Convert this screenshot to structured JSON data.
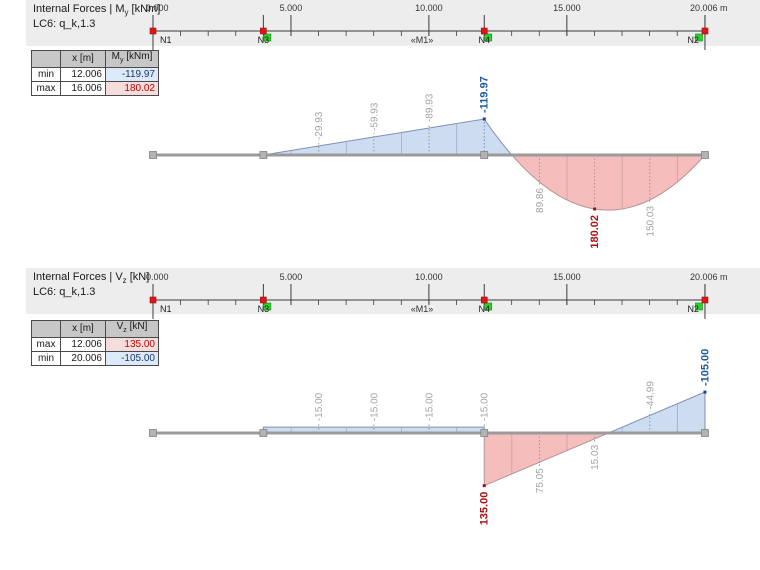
{
  "panel_my": {
    "title": {
      "prefix": "Internal Forces | M",
      "sub": "y",
      "suffix": " [kNm]"
    },
    "load_case": "LC6: q_k,1.3",
    "table": {
      "col_x": "x [m]",
      "col_val": {
        "prefix": "M",
        "sub": "y",
        "suffix": " [kNm]"
      },
      "rows": [
        {
          "label": "min",
          "x": "12.006",
          "value": "-119.97",
          "tone": "blue"
        },
        {
          "label": "max",
          "x": "16.006",
          "value": "180.02",
          "tone": "red"
        }
      ]
    }
  },
  "panel_vz": {
    "title": {
      "prefix": "Internal Forces | V",
      "sub": "z",
      "suffix": " [kN]"
    },
    "load_case": "LC6: q_k,1.3",
    "table": {
      "col_x": "x [m]",
      "col_val": {
        "prefix": "V",
        "sub": "z",
        "suffix": " [kN]"
      },
      "rows": [
        {
          "label": "max",
          "x": "12.006",
          "value": "135.00",
          "tone": "red"
        },
        {
          "label": "min",
          "x": "20.006",
          "value": "-105.00",
          "tone": "blue"
        }
      ]
    }
  },
  "chart_data": [
    {
      "type": "area",
      "title": "Internal Forces | My [kNm]",
      "load_case": "LC6: q_k,1.3",
      "x_unit": "m",
      "value_unit": "kNm",
      "x_range": [
        0,
        20.006
      ],
      "x_ticks": [
        {
          "x": 0,
          "label": "0.000"
        },
        {
          "x": 5,
          "label": "5.000"
        },
        {
          "x": 10,
          "label": "10.000"
        },
        {
          "x": 15,
          "label": "15.000"
        },
        {
          "x": 20.006,
          "label": "20.006 m"
        }
      ],
      "nodes": [
        {
          "name": "N1",
          "x": 0,
          "support": "none"
        },
        {
          "name": "N3",
          "x": 4,
          "support": "right"
        },
        {
          "name": "N4",
          "x": 12.006,
          "support": "right"
        },
        {
          "name": "N2",
          "x": 20.006,
          "support": "left"
        }
      ],
      "member_label": {
        "text": "«M1»",
        "x": 9.75
      },
      "segments": [
        {
          "kind": "zero",
          "x1": 0,
          "x2": 4
        },
        {
          "kind": "linear",
          "pts": [
            [
              4,
              0
            ],
            [
              12.006,
              -119.97
            ]
          ]
        },
        {
          "kind": "parabola",
          "pts": [
            [
              12.006,
              -119.97
            ],
            [
              16.006,
              180.02
            ],
            [
              20.006,
              0
            ]
          ]
        }
      ],
      "point_labels": [
        {
          "x": 6.006,
          "text": "-29.93",
          "value": -29.93
        },
        {
          "x": 8.006,
          "text": "-59.93",
          "value": -59.93
        },
        {
          "x": 10.006,
          "text": "-89.93",
          "value": -89.93
        },
        {
          "x": 12.006,
          "text": "-119.97",
          "value": -119.97,
          "emph": "min"
        },
        {
          "x": 14.006,
          "text": "89.86",
          "value": 89.86
        },
        {
          "x": 16.006,
          "text": "180.02",
          "value": 180.02,
          "emph": "max"
        },
        {
          "x": 18.006,
          "text": "150.03",
          "value": 150.03
        }
      ],
      "extremes": {
        "min": {
          "x": 12.006,
          "value": -119.97
        },
        "max": {
          "x": 16.006,
          "value": 180.02
        }
      }
    },
    {
      "type": "area",
      "title": "Internal Forces | Vz [kN]",
      "load_case": "LC6: q_k,1.3",
      "x_unit": "m",
      "value_unit": "kN",
      "x_range": [
        0,
        20.006
      ],
      "x_ticks": [
        {
          "x": 0,
          "label": "0.000"
        },
        {
          "x": 5,
          "label": "5.000"
        },
        {
          "x": 10,
          "label": "10.000"
        },
        {
          "x": 15,
          "label": "15.000"
        },
        {
          "x": 20.006,
          "label": "20.006 m"
        }
      ],
      "nodes": [
        {
          "name": "N1",
          "x": 0,
          "support": "none"
        },
        {
          "name": "N3",
          "x": 4,
          "support": "right"
        },
        {
          "name": "N4",
          "x": 12.006,
          "support": "right"
        },
        {
          "name": "N2",
          "x": 20.006,
          "support": "left"
        }
      ],
      "member_label": {
        "text": "«M1»",
        "x": 9.75
      },
      "segments": [
        {
          "kind": "zero",
          "x1": 0,
          "x2": 4
        },
        {
          "kind": "const",
          "x1": 4,
          "x2": 12.006,
          "value": -15.0
        },
        {
          "kind": "linear",
          "pts": [
            [
              12.006,
              135.0
            ],
            [
              20.006,
              -105.0
            ]
          ]
        }
      ],
      "point_labels": [
        {
          "x": 6.006,
          "text": "-15.00",
          "value": -15.0
        },
        {
          "x": 8.006,
          "text": "-15.00",
          "value": -15.0
        },
        {
          "x": 10.006,
          "text": "-15.00",
          "value": -15.0
        },
        {
          "x": 12.006,
          "text": "-15.00",
          "value": -15.0
        },
        {
          "x": 12.006,
          "text": "135.00",
          "value": 135.0,
          "emph": "max",
          "edge": true
        },
        {
          "x": 14.006,
          "text": "75.05",
          "value": 75.05
        },
        {
          "x": 16.006,
          "text": "15.03",
          "value": 15.03
        },
        {
          "x": 18.006,
          "text": "-44.99",
          "value": -44.99
        },
        {
          "x": 20.006,
          "text": "-105.00",
          "value": -105.0,
          "emph": "min",
          "edge": true
        }
      ],
      "extremes": {
        "max": {
          "x": 12.006,
          "value": 135.0
        },
        "min": {
          "x": 20.006,
          "value": -105.0
        }
      }
    }
  ],
  "colors": {
    "fill_negative": "#cedcf2",
    "fill_positive": "#f6bdbd",
    "stroke_negative": "#7e90b4",
    "stroke_positive": "#b59494",
    "hatch_negative": "#9aaccc",
    "hatch_positive": "#c8a0a0",
    "leader": "#909090",
    "label_gray": "#a3a3a3",
    "label_min": "#1a5c9e",
    "label_max": "#a81414",
    "dot_min": "#14487e",
    "dot_max": "#9e1212",
    "beam": "#9b9b9b",
    "beam_marker": "#b3b3b3",
    "beam_marker_border": "#828282",
    "ruler": "#3c3c3c",
    "ruler_text": "#333333",
    "node_red": "#e01616",
    "node_red_border": "#9a0f0f",
    "node_green": "#2bd42b",
    "node_green_border": "#128a12",
    "strip_bg": "#ededed"
  }
}
